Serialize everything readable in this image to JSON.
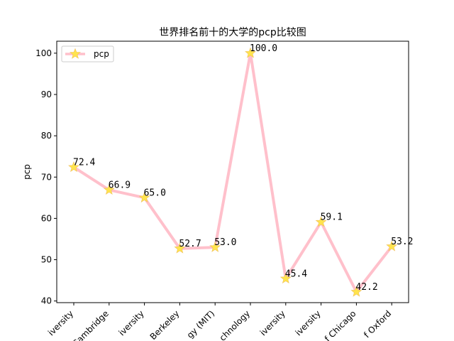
{
  "chart_data": {
    "type": "line",
    "title": "世界排名前十的大学的pcp比较图",
    "xlabel": "",
    "ylabel": "pcp",
    "categories": [
      "Harvard University",
      "University of Cambridge",
      "Stanford University",
      "University of California, Berkeley",
      "Massachusetts Institute of Technology (MIT)",
      "California Institute of Technology",
      "Princeton University",
      "Columbia University",
      "University of Chicago",
      "University of Oxford"
    ],
    "visible_tick_labels": [
      "iversity",
      "Cambridge",
      "iversity",
      "Berkeley",
      "gy (MIT)",
      "chnology",
      "iversity",
      "iversity",
      "f Chicago",
      "f Oxford"
    ],
    "series": [
      {
        "name": "pcp",
        "values": [
          72.4,
          66.9,
          65.0,
          52.7,
          53.0,
          100.0,
          45.4,
          59.1,
          42.2,
          53.2
        ],
        "line_color": "#ffc0cb",
        "marker": "star",
        "marker_color": "#ffe44d"
      }
    ],
    "annotations": [
      "72.4",
      "66.9",
      "65.0",
      "52.7",
      "53.0",
      "100.0",
      "45.4",
      "59.1",
      "42.2",
      "53.2"
    ],
    "ylim": [
      39.6,
      102.9
    ],
    "yticks": [
      40,
      50,
      60,
      70,
      80,
      90,
      100
    ],
    "grid": false,
    "legend_position": "upper left",
    "xtick_rotation": 45
  }
}
